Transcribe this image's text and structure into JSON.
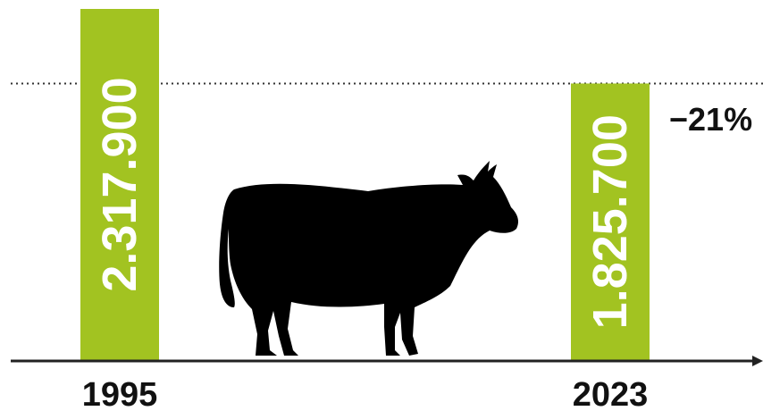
{
  "chart_data": {
    "type": "bar",
    "categories": [
      "1995",
      "2023"
    ],
    "values": [
      2317900,
      1825700
    ],
    "value_labels": [
      "2.317.900",
      "1.825.700"
    ],
    "change_label": "−21%",
    "ylim": [
      0,
      2317900
    ],
    "grid": false,
    "reference_line": {
      "style": "dotted",
      "at_value": 1825700
    },
    "colors": {
      "bar": "#a2c321",
      "bar_text": "#ffffff",
      "axis": "#222222",
      "text": "#111111",
      "illustration": "#000000"
    },
    "illustration": "cow-silhouette"
  }
}
